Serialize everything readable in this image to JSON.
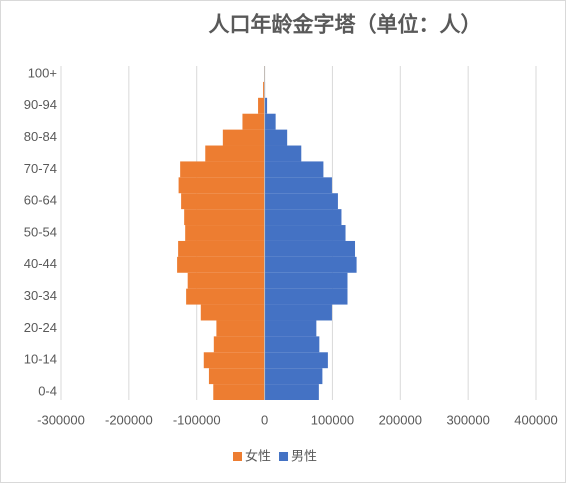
{
  "chart_data": {
    "type": "pyramid",
    "title": "人口年龄金字塔（单位：人）",
    "categories": [
      "0-4",
      null,
      "10-14",
      null,
      "20-24",
      null,
      "30-34",
      null,
      "40-44",
      null,
      "50-54",
      null,
      "60-64",
      null,
      "70-74",
      null,
      "80-84",
      null,
      "90-94",
      null,
      "100+"
    ],
    "series": [
      {
        "name": "女性",
        "color": "#ED7D31",
        "values": [
          -75600,
          -82000,
          -89600,
          -74800,
          -71000,
          -94000,
          -115600,
          -113300,
          -128900,
          -127400,
          -117000,
          -118500,
          -123000,
          -126700,
          -124400,
          -87400,
          -61500,
          -32600,
          -9600,
          -2200,
          -700
        ]
      },
      {
        "name": "男性",
        "color": "#4472C4",
        "values": [
          80000,
          85200,
          93300,
          80700,
          76300,
          99300,
          122200,
          122200,
          135600,
          133300,
          119300,
          113300,
          108100,
          99300,
          86700,
          54100,
          33300,
          16300,
          3700,
          700,
          200
        ]
      }
    ],
    "xlim": [
      -300000,
      400000
    ],
    "xticks": [
      -300000,
      -200000,
      -100000,
      0,
      100000,
      200000,
      300000,
      400000
    ],
    "grid": true
  }
}
